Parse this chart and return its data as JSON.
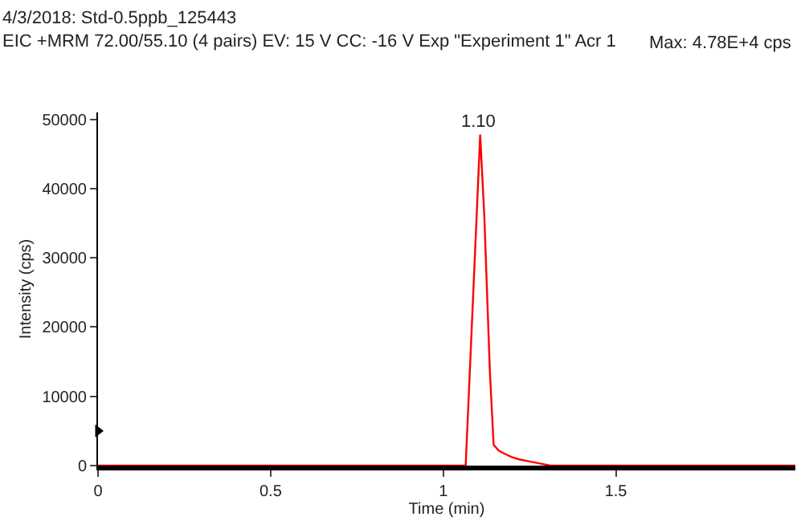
{
  "chart_data": {
    "type": "line",
    "title": "4/3/2018: Std-0.5ppb_125443",
    "subtitle": "EIC +MRM 72.00/55.10 (4 pairs) EV: 15 V CC: -16 V Exp \"Experiment 1\" Acr 1",
    "xlabel": "Time (min)",
    "ylabel": "Intensity (cps)",
    "annotations": [
      "Max: 4.78E+4 cps",
      {
        "text": "1.10",
        "x": 1.1,
        "y": 47800
      }
    ],
    "series": [
      {
        "color": "#ff0000",
        "x": [
          0,
          1.0,
          1.065,
          1.08,
          1.095,
          1.107,
          1.119,
          1.135,
          1.146,
          1.16,
          1.174,
          1.2,
          1.22,
          1.25,
          1.28,
          1.31,
          1.5,
          2.02
        ],
        "values": [
          0,
          0,
          0,
          17000,
          34000,
          47800,
          36000,
          13700,
          3000,
          2200,
          1800,
          1200,
          900,
          600,
          300,
          0,
          0,
          0
        ]
      },
      {
        "type": "scatter",
        "marker": "triangle",
        "color": "#000000",
        "x": [
          0
        ],
        "values": [
          5000
        ]
      }
    ],
    "xlim": [
      0,
      2.02
    ],
    "ylim": [
      0,
      51000
    ],
    "xticks": [
      0,
      0.5,
      1,
      1.5
    ],
    "yticks": [
      0,
      10000,
      20000,
      30000,
      40000,
      50000
    ],
    "legend": false
  }
}
